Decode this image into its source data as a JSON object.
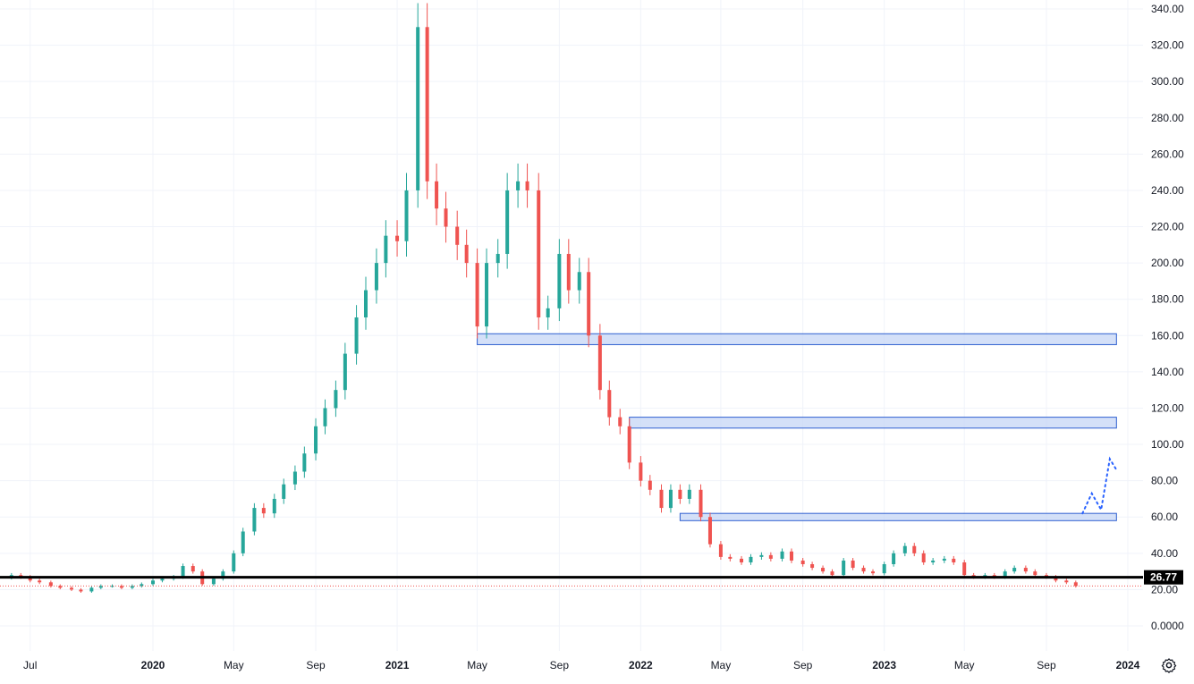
{
  "chart_data": {
    "type": "candlestick",
    "title": "",
    "y_axis": {
      "min": -10,
      "max": 340,
      "tick_labels": [
        "0.0000",
        "20.00",
        "40.00",
        "60.00",
        "80.00",
        "100.00",
        "120.00",
        "140.00",
        "160.00",
        "180.00",
        "200.00",
        "220.00",
        "240.00",
        "260.00",
        "280.00",
        "300.00",
        "320.00",
        "340.00"
      ],
      "tick_values": [
        0,
        20,
        40,
        60,
        80,
        100,
        120,
        140,
        160,
        180,
        200,
        220,
        240,
        260,
        280,
        300,
        320,
        340
      ],
      "position": "right"
    },
    "x_axis": {
      "start": "2019-06",
      "end": "2024-01",
      "tick_labels": [
        {
          "label": "Jul",
          "date": "2019-07-01",
          "bold": false
        },
        {
          "label": "2020",
          "date": "2020-01-01",
          "bold": true
        },
        {
          "label": "May",
          "date": "2020-05-01",
          "bold": false
        },
        {
          "label": "Sep",
          "date": "2020-09-01",
          "bold": false
        },
        {
          "label": "2021",
          "date": "2021-01-01",
          "bold": true
        },
        {
          "label": "May",
          "date": "2021-05-01",
          "bold": false
        },
        {
          "label": "Sep",
          "date": "2021-09-01",
          "bold": false
        },
        {
          "label": "2022",
          "date": "2022-01-01",
          "bold": true
        },
        {
          "label": "May",
          "date": "2022-05-01",
          "bold": false
        },
        {
          "label": "Sep",
          "date": "2022-09-01",
          "bold": false
        },
        {
          "label": "2023",
          "date": "2023-01-01",
          "bold": true
        },
        {
          "label": "May",
          "date": "2023-05-01",
          "bold": false
        },
        {
          "label": "Sep",
          "date": "2023-09-01",
          "bold": false
        },
        {
          "label": "2024",
          "date": "2024-01-01",
          "bold": true
        }
      ]
    },
    "candles_weekly_close": [
      {
        "d": "2019-06-03",
        "c": 28
      },
      {
        "d": "2019-06-17",
        "c": 27
      },
      {
        "d": "2019-07-01",
        "c": 25
      },
      {
        "d": "2019-07-15",
        "c": 24
      },
      {
        "d": "2019-08-01",
        "c": 22
      },
      {
        "d": "2019-08-15",
        "c": 21
      },
      {
        "d": "2019-09-01",
        "c": 20
      },
      {
        "d": "2019-09-15",
        "c": 19
      },
      {
        "d": "2019-10-01",
        "c": 21
      },
      {
        "d": "2019-10-15",
        "c": 22
      },
      {
        "d": "2019-11-01",
        "c": 22
      },
      {
        "d": "2019-11-15",
        "c": 21
      },
      {
        "d": "2019-12-01",
        "c": 22
      },
      {
        "d": "2019-12-15",
        "c": 23
      },
      {
        "d": "2020-01-01",
        "c": 25
      },
      {
        "d": "2020-01-15",
        "c": 26
      },
      {
        "d": "2020-02-01",
        "c": 27
      },
      {
        "d": "2020-02-15",
        "c": 33
      },
      {
        "d": "2020-03-01",
        "c": 30
      },
      {
        "d": "2020-03-15",
        "c": 23
      },
      {
        "d": "2020-04-01",
        "c": 26
      },
      {
        "d": "2020-04-15",
        "c": 30
      },
      {
        "d": "2020-05-01",
        "c": 40
      },
      {
        "d": "2020-05-15",
        "c": 52
      },
      {
        "d": "2020-06-01",
        "c": 65
      },
      {
        "d": "2020-06-15",
        "c": 62
      },
      {
        "d": "2020-07-01",
        "c": 70
      },
      {
        "d": "2020-07-15",
        "c": 78
      },
      {
        "d": "2020-08-01",
        "c": 85
      },
      {
        "d": "2020-08-15",
        "c": 95
      },
      {
        "d": "2020-09-01",
        "c": 110
      },
      {
        "d": "2020-09-15",
        "c": 120
      },
      {
        "d": "2020-10-01",
        "c": 130
      },
      {
        "d": "2020-10-15",
        "c": 150
      },
      {
        "d": "2020-11-01",
        "c": 170
      },
      {
        "d": "2020-11-15",
        "c": 185
      },
      {
        "d": "2020-12-01",
        "c": 200
      },
      {
        "d": "2020-12-15",
        "c": 215
      },
      {
        "d": "2021-01-01",
        "c": 212
      },
      {
        "d": "2021-01-15",
        "c": 240
      },
      {
        "d": "2021-02-01",
        "c": 330
      },
      {
        "d": "2021-02-15",
        "c": 245
      },
      {
        "d": "2021-03-01",
        "c": 230
      },
      {
        "d": "2021-03-15",
        "c": 220
      },
      {
        "d": "2021-04-01",
        "c": 210
      },
      {
        "d": "2021-04-15",
        "c": 200
      },
      {
        "d": "2021-05-01",
        "c": 165
      },
      {
        "d": "2021-05-15",
        "c": 200
      },
      {
        "d": "2021-06-01",
        "c": 205
      },
      {
        "d": "2021-06-15",
        "c": 240
      },
      {
        "d": "2021-07-01",
        "c": 245
      },
      {
        "d": "2021-07-15",
        "c": 240
      },
      {
        "d": "2021-08-01",
        "c": 170
      },
      {
        "d": "2021-08-15",
        "c": 175
      },
      {
        "d": "2021-09-01",
        "c": 205
      },
      {
        "d": "2021-09-15",
        "c": 185
      },
      {
        "d": "2021-10-01",
        "c": 195
      },
      {
        "d": "2021-10-15",
        "c": 160
      },
      {
        "d": "2021-11-01",
        "c": 130
      },
      {
        "d": "2021-11-15",
        "c": 115
      },
      {
        "d": "2021-12-01",
        "c": 110
      },
      {
        "d": "2021-12-15",
        "c": 90
      },
      {
        "d": "2022-01-01",
        "c": 80
      },
      {
        "d": "2022-01-15",
        "c": 75
      },
      {
        "d": "2022-02-01",
        "c": 65
      },
      {
        "d": "2022-02-15",
        "c": 75
      },
      {
        "d": "2022-03-01",
        "c": 70
      },
      {
        "d": "2022-03-15",
        "c": 75
      },
      {
        "d": "2022-04-01",
        "c": 60
      },
      {
        "d": "2022-04-15",
        "c": 45
      },
      {
        "d": "2022-05-01",
        "c": 38
      },
      {
        "d": "2022-05-15",
        "c": 37
      },
      {
        "d": "2022-06-01",
        "c": 35
      },
      {
        "d": "2022-06-15",
        "c": 38
      },
      {
        "d": "2022-07-01",
        "c": 39
      },
      {
        "d": "2022-07-15",
        "c": 37
      },
      {
        "d": "2022-08-01",
        "c": 41
      },
      {
        "d": "2022-08-15",
        "c": 36
      },
      {
        "d": "2022-09-01",
        "c": 34
      },
      {
        "d": "2022-09-15",
        "c": 32
      },
      {
        "d": "2022-10-01",
        "c": 30
      },
      {
        "d": "2022-10-15",
        "c": 28
      },
      {
        "d": "2022-11-01",
        "c": 36
      },
      {
        "d": "2022-11-15",
        "c": 32
      },
      {
        "d": "2022-12-01",
        "c": 30
      },
      {
        "d": "2022-12-15",
        "c": 29
      },
      {
        "d": "2023-01-01",
        "c": 34
      },
      {
        "d": "2023-01-15",
        "c": 40
      },
      {
        "d": "2023-02-01",
        "c": 44
      },
      {
        "d": "2023-02-15",
        "c": 40
      },
      {
        "d": "2023-03-01",
        "c": 35
      },
      {
        "d": "2023-03-15",
        "c": 36
      },
      {
        "d": "2023-04-01",
        "c": 37
      },
      {
        "d": "2023-04-15",
        "c": 35
      },
      {
        "d": "2023-05-01",
        "c": 28
      },
      {
        "d": "2023-05-15",
        "c": 27
      },
      {
        "d": "2023-06-01",
        "c": 28
      },
      {
        "d": "2023-06-15",
        "c": 27
      },
      {
        "d": "2023-07-01",
        "c": 30
      },
      {
        "d": "2023-07-15",
        "c": 32
      },
      {
        "d": "2023-08-01",
        "c": 30
      },
      {
        "d": "2023-08-15",
        "c": 28
      },
      {
        "d": "2023-09-01",
        "c": 27
      },
      {
        "d": "2023-09-15",
        "c": 25
      },
      {
        "d": "2023-10-01",
        "c": 24
      },
      {
        "d": "2023-10-15",
        "c": 22
      }
    ],
    "support_zones": [
      {
        "from_date": "2021-05-01",
        "to_date": "2023-12-15",
        "low": 155,
        "high": 161
      },
      {
        "from_date": "2021-12-15",
        "to_date": "2023-12-15",
        "low": 109,
        "high": 115
      },
      {
        "from_date": "2022-03-01",
        "to_date": "2023-12-15",
        "low": 58,
        "high": 62
      }
    ],
    "horizontal_line": {
      "value": 26.77,
      "label": "26.77"
    },
    "current_price_line": {
      "value": 22
    },
    "projection_path": [
      {
        "d": "2023-10-25",
        "v": 62
      },
      {
        "d": "2023-11-08",
        "v": 73
      },
      {
        "d": "2023-11-22",
        "v": 64
      },
      {
        "d": "2023-12-05",
        "v": 92
      },
      {
        "d": "2023-12-15",
        "v": 86
      }
    ],
    "colors": {
      "up": "#26a69a",
      "down": "#ef5350",
      "zone_fill": "#c6d5f5",
      "zone_border": "#2e5fd0",
      "projection": "#2962ff",
      "grid": "#f0f3fa",
      "line": "#000000"
    }
  },
  "settings_icon": "gear-icon"
}
